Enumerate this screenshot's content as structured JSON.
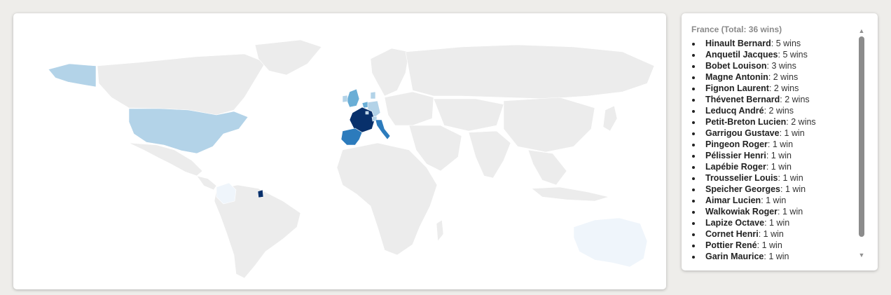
{
  "panel": {
    "title": "France (Total: 36 wins)",
    "riders": [
      {
        "name": "Hinault Bernard",
        "wins": ": 5 wins"
      },
      {
        "name": "Anquetil Jacques",
        "wins": ": 5 wins"
      },
      {
        "name": "Bobet Louison",
        "wins": ": 3 wins"
      },
      {
        "name": "Magne Antonin",
        "wins": ": 2 wins"
      },
      {
        "name": "Fignon Laurent",
        "wins": ": 2 wins"
      },
      {
        "name": "Thévenet Bernard",
        "wins": ": 2 wins"
      },
      {
        "name": "Leducq André",
        "wins": ": 2 wins"
      },
      {
        "name": "Petit-Breton Lucien",
        "wins": ": 2 wins"
      },
      {
        "name": "Garrigou Gustave",
        "wins": ": 1 win"
      },
      {
        "name": "Pingeon Roger",
        "wins": ": 1 win"
      },
      {
        "name": "Pélissier Henri",
        "wins": ": 1 win"
      },
      {
        "name": "Lapébie Roger",
        "wins": ": 1 win"
      },
      {
        "name": "Trousselier Louis",
        "wins": ": 1 win"
      },
      {
        "name": "Speicher Georges",
        "wins": ": 1 win"
      },
      {
        "name": "Aimar Lucien",
        "wins": ": 1 win"
      },
      {
        "name": "Walkowiak Roger",
        "wins": ": 1 win"
      },
      {
        "name": "Lapize Octave",
        "wins": ": 1 win"
      },
      {
        "name": "Cornet Henri",
        "wins": ": 1 win"
      },
      {
        "name": "Pottier René",
        "wins": ": 1 win"
      },
      {
        "name": "Garin Maurice",
        "wins": ": 1 win"
      }
    ]
  },
  "scrollbar": {
    "up_icon": "triangle-up-icon",
    "down_icon": "triangle-down-icon"
  },
  "colors": {
    "background": "#eeedea",
    "land_default": "#ececec",
    "scale_darkest": "#08306b",
    "scale_dark": "#2c7bbc",
    "scale_mid": "#6aaed6",
    "scale_light": "#b3d3e8",
    "scale_lightest": "#eff5fb"
  }
}
